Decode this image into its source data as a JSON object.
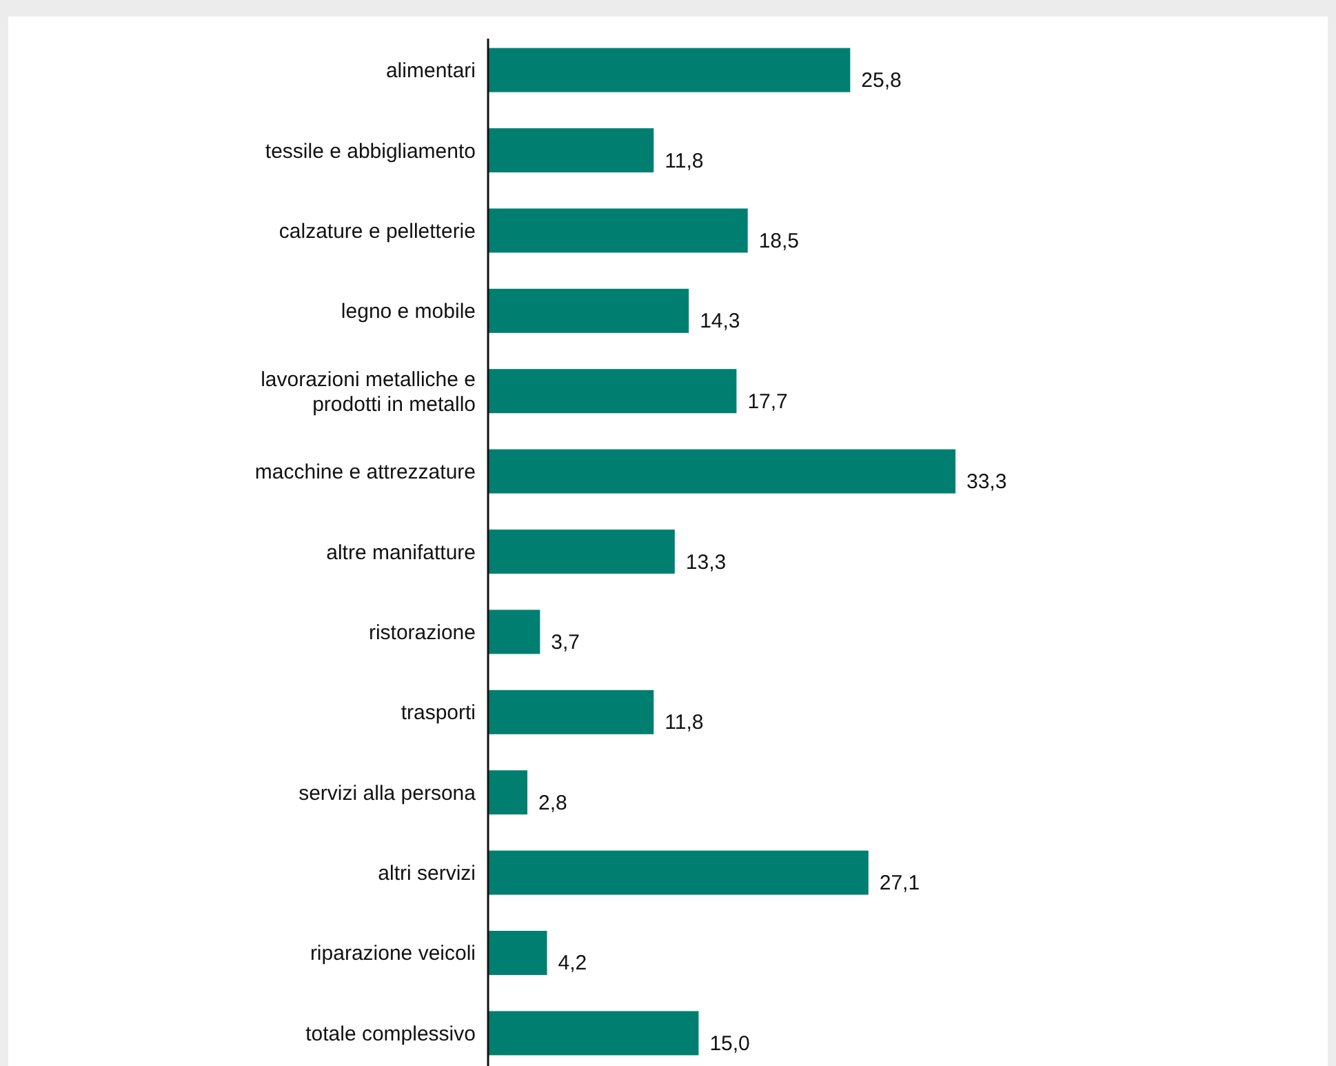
{
  "chart_data": {
    "type": "bar",
    "orientation": "horizontal",
    "categories": [
      "alimentari",
      "tessile e abbigliamento",
      "calzature e pelletterie",
      "legno e mobile",
      "lavorazioni metalliche e prodotti in metallo",
      "macchine e attrezzature",
      "altre manifatture",
      "ristorazione",
      "trasporti",
      "servizi alla persona",
      "altri servizi",
      "riparazione veicoli",
      "totale complessivo"
    ],
    "values": [
      25.8,
      11.8,
      18.5,
      14.3,
      17.7,
      33.3,
      13.3,
      3.7,
      11.8,
      2.8,
      27.1,
      4.2,
      15.0
    ],
    "value_labels": [
      "25,8",
      "11,8",
      "18,5",
      "14,3",
      "17,7",
      "33,3",
      "13,3",
      "3,7",
      "11,8",
      "2,8",
      "27,1",
      "4,2",
      "15,0"
    ],
    "color": "#007f71"
  }
}
